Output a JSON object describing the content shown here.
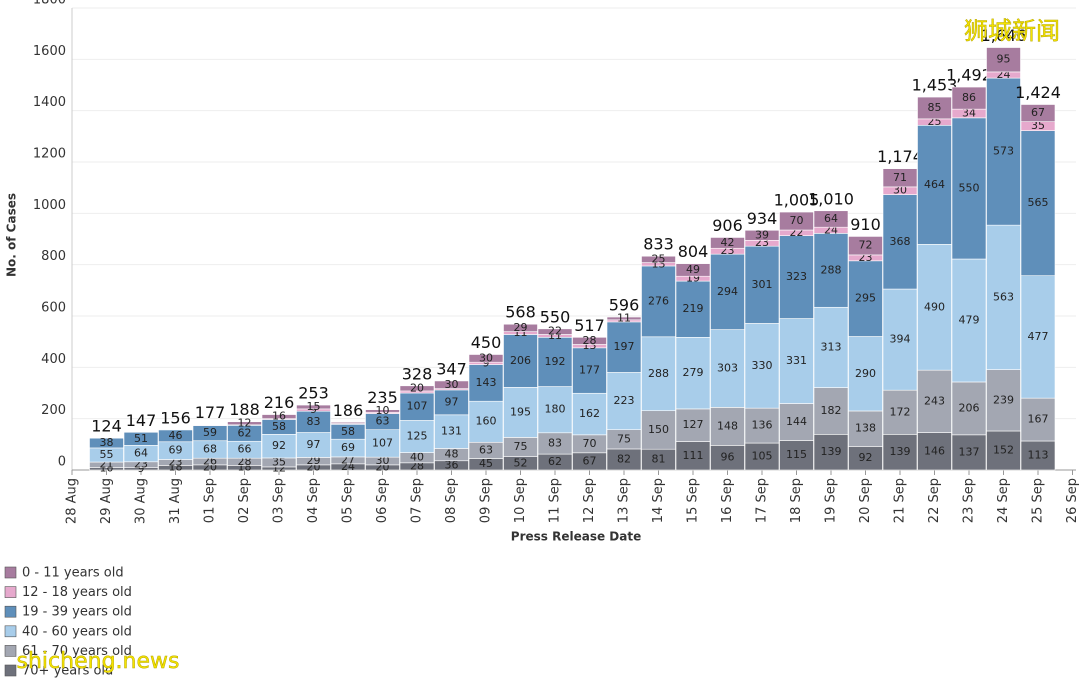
{
  "chart_data": {
    "type": "stacked-bar",
    "y_label": "No. of Cases",
    "x_label": "Press Release Date",
    "categories": [
      "28 Aug",
      "29 Aug",
      "30 Aug",
      "31 Aug",
      "01 Sep",
      "02 Sep",
      "03 Sep",
      "04 Sep",
      "05 Sep",
      "06 Sep",
      "07 Sep",
      "08 Sep",
      "09 Sep",
      "10 Sep",
      "11 Sep",
      "12 Sep",
      "13 Sep",
      "14 Sep",
      "15 Sep",
      "16 Sep",
      "17 Sep",
      "18 Sep",
      "19 Sep",
      "20 Sep",
      "21 Sep",
      "22 Sep",
      "23 Sep",
      "24 Sep",
      "25 Sep",
      "26 Sep"
    ],
    "series": [
      {
        "name": "0 - 11 years old",
        "color": "#a77c9f",
        "values": [
          null,
          0,
          0,
          0,
          2,
          12,
          16,
          15,
          5,
          10,
          20,
          30,
          30,
          29,
          22,
          28,
          11,
          25,
          49,
          42,
          39,
          70,
          64,
          72,
          71,
          85,
          86,
          95,
          67,
          null
        ]
      },
      {
        "name": "12 - 18 years old",
        "color": "#e6a9cd",
        "values": [
          null,
          0,
          0,
          0,
          2,
          2,
          3,
          9,
          3,
          5,
          8,
          5,
          9,
          11,
          11,
          13,
          8,
          13,
          19,
          23,
          23,
          22,
          24,
          23,
          30,
          25,
          34,
          24,
          35,
          null
        ]
      },
      {
        "name": "19 - 39 years old",
        "color": "#5f8fba",
        "values": [
          null,
          38,
          51,
          46,
          59,
          62,
          58,
          83,
          58,
          63,
          107,
          97,
          143,
          206,
          192,
          177,
          197,
          276,
          219,
          294,
          301,
          323,
          288,
          295,
          368,
          464,
          550,
          573,
          565,
          null
        ]
      },
      {
        "name": "40 - 60 years old",
        "color": "#a8cdea",
        "values": [
          null,
          55,
          64,
          69,
          68,
          66,
          92,
          97,
          69,
          107,
          125,
          131,
          160,
          195,
          180,
          162,
          223,
          288,
          279,
          303,
          330,
          331,
          313,
          290,
          394,
          490,
          479,
          563,
          477,
          null
        ]
      },
      {
        "name": "61 - 70 years old",
        "color": "#a3a7b2",
        "values": [
          null,
          21,
          23,
          23,
          26,
          28,
          35,
          29,
          27,
          30,
          40,
          48,
          63,
          75,
          83,
          70,
          75,
          150,
          127,
          148,
          136,
          144,
          182,
          138,
          172,
          243,
          206,
          239,
          167,
          null
        ]
      },
      {
        "name": "70+ years old",
        "color": "#6e717b",
        "values": [
          null,
          10,
          9,
          18,
          20,
          18,
          12,
          20,
          24,
          20,
          28,
          36,
          45,
          52,
          62,
          67,
          82,
          81,
          111,
          96,
          105,
          115,
          139,
          92,
          139,
          146,
          137,
          152,
          113,
          null
        ]
      }
    ],
    "totals": [
      null,
      124,
      147,
      156,
      177,
      188,
      216,
      253,
      186,
      235,
      328,
      347,
      450,
      568,
      550,
      517,
      596,
      833,
      804,
      906,
      934,
      1005,
      1010,
      910,
      1174,
      1453,
      1492,
      1646,
      1424,
      null
    ],
    "total_labels": [
      null,
      "124",
      "147",
      "156",
      "177",
      "188",
      "216",
      "253",
      "186",
      "235",
      "328",
      "347",
      "450",
      "568",
      "550",
      "517",
      "596",
      "833",
      "804",
      "906",
      "934",
      "1,005",
      "1,010",
      "910",
      "1,174",
      "1,453",
      "1,492",
      "1,646",
      "1,424",
      null
    ],
    "ylim": [
      0,
      1800
    ],
    "yticks": [
      0,
      200,
      400,
      600,
      800,
      1000,
      1200,
      1400,
      1600,
      1800
    ],
    "grid": true,
    "legend": "bottom-left",
    "watermarks": [
      "狮城新闻",
      "shicheng.news"
    ]
  }
}
